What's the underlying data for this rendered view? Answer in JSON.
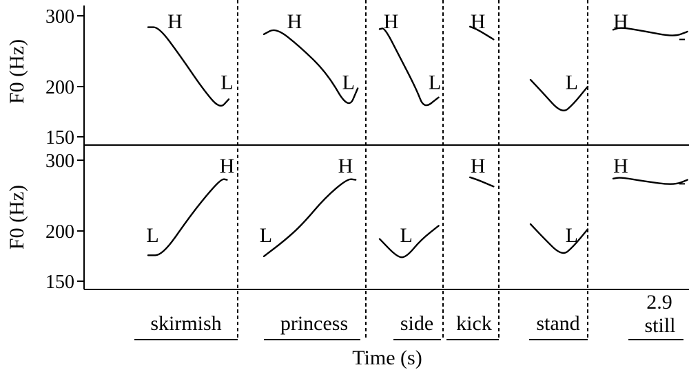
{
  "chart_data": {
    "type": "line",
    "xlabel": "Time (s)",
    "ylabel": "F0 (Hz)",
    "y_scale": "log",
    "yticks": [
      150,
      200,
      300
    ],
    "time_end_label": "2.9",
    "words": [
      "skirmish",
      "princess",
      "side",
      "kick",
      "stand",
      "still"
    ],
    "panels": [
      {
        "name": "",
        "segments": [
          {
            "word": "skirmish",
            "points": [
              [
                0.0,
                281
              ],
              [
                0.12,
                281
              ],
              [
                0.35,
                240
              ],
              [
                0.62,
                196
              ],
              [
                0.8,
                176
              ],
              [
                0.9,
                186
              ]
            ],
            "labels": [
              {
                "text": "H",
                "x": 0.3,
                "y": 292
              },
              {
                "text": "L",
                "x": 0.88,
                "y": 206
              }
            ]
          },
          {
            "word": "princess",
            "points": [
              [
                0.0,
                270
              ],
              [
                0.12,
                280
              ],
              [
                0.35,
                252
              ],
              [
                0.62,
                216
              ],
              [
                0.83,
                175
              ],
              [
                0.92,
                198
              ]
            ],
            "labels": [
              {
                "text": "H",
                "x": 0.3,
                "y": 292
              },
              {
                "text": "L",
                "x": 0.83,
                "y": 206
              }
            ]
          },
          {
            "word": "side",
            "points": [
              [
                0.0,
                278
              ],
              [
                0.08,
                280
              ],
              [
                0.3,
                240
              ],
              [
                0.58,
                197
              ],
              [
                0.7,
                176
              ],
              [
                0.93,
                188
              ]
            ],
            "labels": [
              {
                "text": "H",
                "x": 0.18,
                "y": 292
              },
              {
                "text": "L",
                "x": 0.87,
                "y": 206
              }
            ]
          },
          {
            "word": "kick",
            "points": [
              [
                0.45,
                282
              ],
              [
                0.6,
                277
              ],
              [
                0.9,
                262
              ]
            ],
            "labels": [
              {
                "text": "H",
                "x": 0.6,
                "y": 292
              }
            ]
          },
          {
            "word": "stand",
            "points": [
              [
                0.0,
                208
              ],
              [
                0.2,
                194
              ],
              [
                0.55,
                171
              ],
              [
                0.75,
                181
              ],
              [
                1.0,
                200
              ]
            ],
            "labels": [
              {
                "text": "L",
                "x": 0.72,
                "y": 206
              }
            ]
          },
          {
            "word": "still",
            "points": [
              [
                0.0,
                277
              ],
              [
                0.1,
                281
              ],
              [
                0.4,
                275
              ],
              [
                0.8,
                266
              ],
              [
                0.98,
                274
              ]
            ],
            "labels": [
              {
                "text": "H",
                "x": 0.1,
                "y": 292
              }
            ]
          }
        ]
      },
      {
        "name": "",
        "segments": [
          {
            "word": "skirmish",
            "points": [
              [
                0.0,
                174
              ],
              [
                0.16,
                174
              ],
              [
                0.45,
                215
              ],
              [
                0.65,
                245
              ],
              [
                0.82,
                270
              ],
              [
                0.88,
                268
              ]
            ],
            "labels": [
              {
                "text": "L",
                "x": 0.05,
                "y": 196
              },
              {
                "text": "H",
                "x": 0.88,
                "y": 292
              }
            ]
          },
          {
            "word": "princess",
            "points": [
              [
                0.0,
                173
              ],
              [
                0.2,
                189
              ],
              [
                0.38,
                208
              ],
              [
                0.6,
                242
              ],
              [
                0.82,
                270
              ],
              [
                0.9,
                268
              ]
            ],
            "labels": [
              {
                "text": "L",
                "x": 0.02,
                "y": 196
              },
              {
                "text": "H",
                "x": 0.8,
                "y": 292
              }
            ]
          },
          {
            "word": "side",
            "points": [
              [
                0.0,
                191
              ],
              [
                0.28,
                172
              ],
              [
                0.42,
                172
              ],
              [
                0.65,
                190
              ],
              [
                0.93,
                206
              ]
            ],
            "labels": [
              {
                "text": "L",
                "x": 0.42,
                "y": 196
              }
            ]
          },
          {
            "word": "kick",
            "points": [
              [
                0.45,
                272
              ],
              [
                0.6,
                268
              ],
              [
                0.9,
                258
              ]
            ],
            "labels": [
              {
                "text": "H",
                "x": 0.6,
                "y": 292
              }
            ]
          },
          {
            "word": "stand",
            "points": [
              [
                0.0,
                208
              ],
              [
                0.2,
                194
              ],
              [
                0.55,
                173
              ],
              [
                0.75,
                183
              ],
              [
                1.0,
                202
              ]
            ],
            "labels": [
              {
                "text": "L",
                "x": 0.72,
                "y": 196
              }
            ]
          },
          {
            "word": "still",
            "points": [
              [
                0.0,
                270
              ],
              [
                0.1,
                272
              ],
              [
                0.4,
                266
              ],
              [
                0.8,
                260
              ],
              [
                0.98,
                268
              ]
            ],
            "labels": [
              {
                "text": "H",
                "x": 0.1,
                "y": 292
              }
            ]
          }
        ]
      }
    ]
  }
}
